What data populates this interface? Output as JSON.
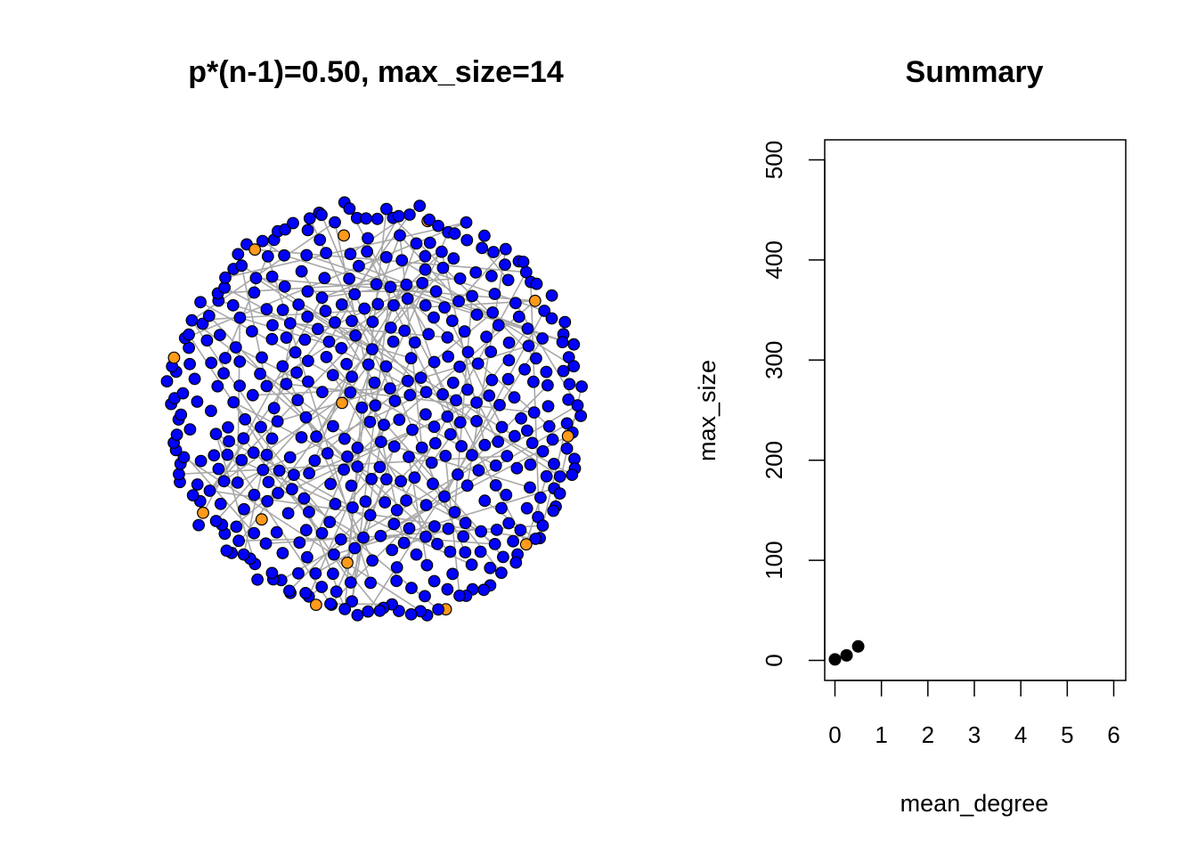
{
  "chart_data": [
    {
      "type": "network",
      "title": "p*(n-1)=0.50, max_size=14",
      "node_colors": {
        "default": "#0000ff",
        "highlight": "#ff9a1a",
        "border": "#000000"
      },
      "edge_color": "#a8a8a8",
      "legend": "none"
    },
    {
      "type": "scatter",
      "title": "Summary",
      "xlabel": "mean_degree",
      "ylabel": "max_size",
      "xlim": [
        0,
        6
      ],
      "ylim": [
        0,
        500
      ],
      "x_ticks": [
        "0",
        "1",
        "2",
        "3",
        "4",
        "5",
        "6"
      ],
      "y_ticks": [
        "0",
        "100",
        "200",
        "300",
        "400",
        "500"
      ],
      "x": [
        0.0,
        0.25,
        0.5
      ],
      "y": [
        1,
        5,
        14
      ],
      "point_color": "#000000",
      "grid": false
    }
  ]
}
